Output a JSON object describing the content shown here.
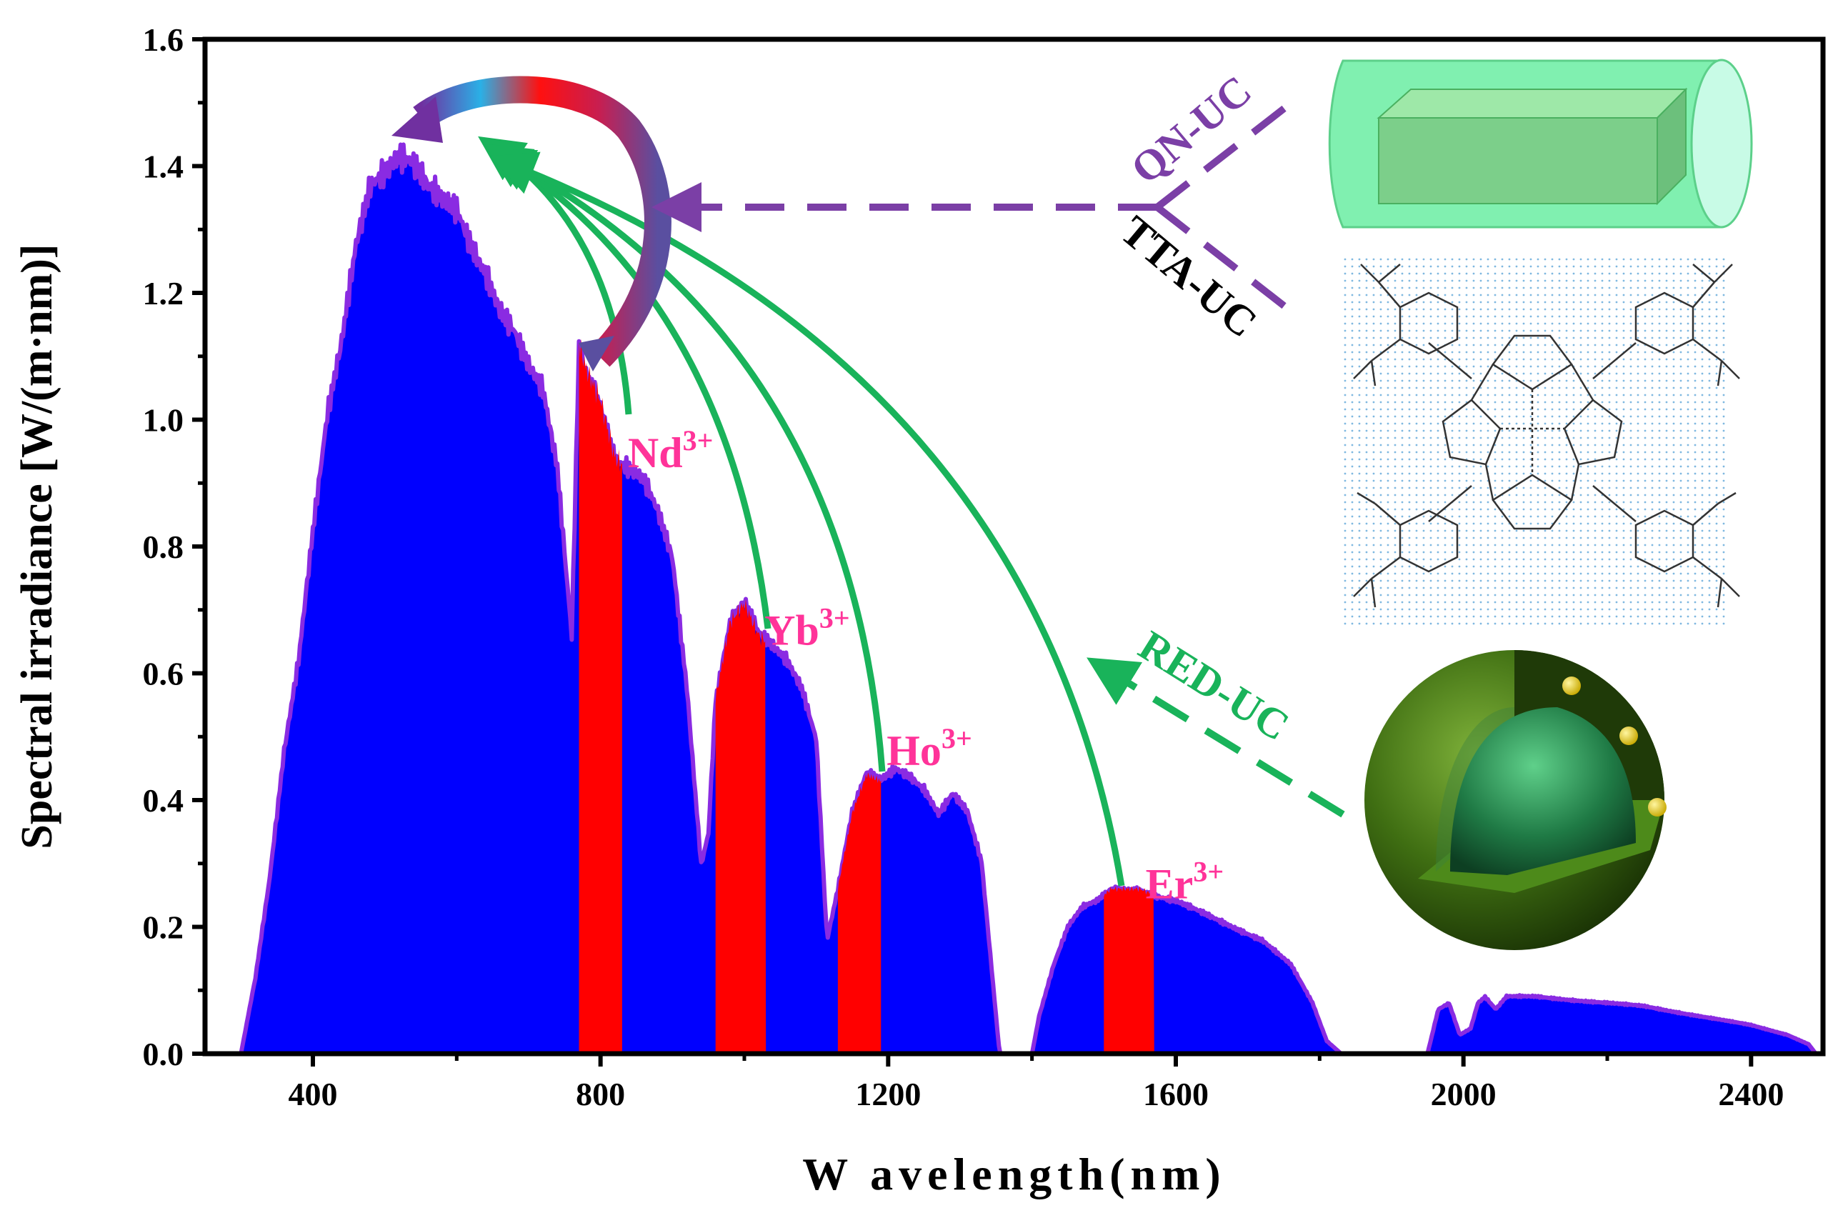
{
  "chart_data": {
    "type": "area",
    "xlabel": "W avelength(nm)",
    "ylabel": "Spectral irradiance [W/(m·nm)]",
    "xlim": [
      250,
      2500
    ],
    "ylim": [
      0,
      1.6
    ],
    "x_ticks": [
      400,
      800,
      1200,
      1600,
      2000,
      2400
    ],
    "y_ticks": [
      0.0,
      0.2,
      0.4,
      0.6,
      0.8,
      1.0,
      1.2,
      1.4,
      1.6
    ],
    "grid": false,
    "spectrum_envelope": {
      "x": [
        300,
        320,
        340,
        360,
        380,
        400,
        420,
        440,
        460,
        480,
        500,
        520,
        540,
        560,
        580,
        600,
        620,
        640,
        660,
        680,
        700,
        720,
        740,
        760,
        770,
        780,
        800,
        820,
        840,
        860,
        880,
        900,
        920,
        940,
        950,
        960,
        980,
        1000,
        1020,
        1040,
        1060,
        1080,
        1100,
        1115,
        1130,
        1150,
        1170,
        1190,
        1210,
        1230,
        1250,
        1270,
        1290,
        1310,
        1330,
        1345,
        1355,
        1400,
        1410,
        1430,
        1450,
        1470,
        1490,
        1510,
        1530,
        1550,
        1570,
        1600,
        1640,
        1680,
        1720,
        1760,
        1790,
        1810,
        1830,
        1950,
        1965,
        1980,
        1995,
        2010,
        2020,
        2030,
        2045,
        2060,
        2100,
        2150,
        2200,
        2250,
        2300,
        2350,
        2400,
        2450,
        2480,
        2490
      ],
      "y": [
        0.0,
        0.12,
        0.28,
        0.48,
        0.62,
        0.82,
        1.0,
        1.12,
        1.28,
        1.38,
        1.4,
        1.42,
        1.4,
        1.36,
        1.34,
        1.33,
        1.28,
        1.24,
        1.18,
        1.14,
        1.08,
        1.04,
        0.92,
        0.66,
        1.12,
        1.08,
        1.03,
        0.94,
        0.92,
        0.9,
        0.85,
        0.78,
        0.58,
        0.3,
        0.35,
        0.56,
        0.68,
        0.71,
        0.66,
        0.64,
        0.62,
        0.58,
        0.5,
        0.18,
        0.26,
        0.38,
        0.44,
        0.43,
        0.45,
        0.44,
        0.42,
        0.38,
        0.41,
        0.38,
        0.3,
        0.12,
        0.0,
        0.0,
        0.06,
        0.14,
        0.2,
        0.23,
        0.24,
        0.26,
        0.26,
        0.26,
        0.25,
        0.24,
        0.22,
        0.2,
        0.18,
        0.14,
        0.08,
        0.02,
        0.0,
        0.0,
        0.07,
        0.08,
        0.03,
        0.04,
        0.08,
        0.09,
        0.07,
        0.09,
        0.09,
        0.085,
        0.08,
        0.075,
        0.065,
        0.055,
        0.045,
        0.03,
        0.015,
        0.0
      ]
    },
    "highlight_bands": [
      {
        "label": "Nd",
        "superscript": "3+",
        "x_start": 770,
        "x_end": 830,
        "label_x": 830,
        "label_y": 0.95
      },
      {
        "label": "Yb",
        "superscript": "3+",
        "x_start": 960,
        "x_end": 1030,
        "label_x": 1020,
        "label_y": 0.67
      },
      {
        "label": "Ho",
        "superscript": "3+",
        "x_start": 1130,
        "x_end": 1190,
        "label_x": 1190,
        "label_y": 0.48
      },
      {
        "label": "Er",
        "superscript": "3+",
        "x_start": 1500,
        "x_end": 1570,
        "label_x": 1550,
        "label_y": 0.27
      }
    ],
    "annotations": [
      "QN-UC",
      "TTA-UC",
      "RED-UC"
    ]
  },
  "colors": {
    "spectrum_fill": "#0000ff",
    "spectrum_edge": "#8a2be2",
    "highlight": "#ff0000",
    "ion_label": "#ff3399",
    "green_arrow": "#19b35a",
    "purple_arrow": "#7b3fa6",
    "tta_text": "#000000"
  }
}
